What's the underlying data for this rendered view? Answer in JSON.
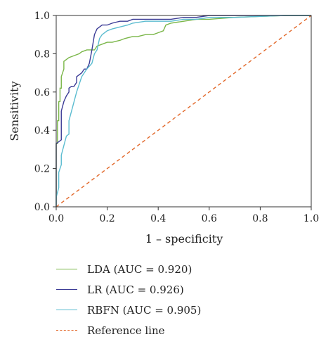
{
  "chart_data": {
    "type": "line",
    "xlabel": "1 – specificity",
    "ylabel": "Sensitivity",
    "xlim": [
      0,
      1
    ],
    "ylim": [
      0,
      1
    ],
    "x_ticks": [
      "0.0",
      "0.2",
      "0.4",
      "0.6",
      "0.8",
      "1.0"
    ],
    "y_ticks": [
      "0.0",
      "0.2",
      "0.4",
      "0.6",
      "0.8",
      "1.0"
    ],
    "grid": false,
    "legend_position": "bottom-left",
    "series": [
      {
        "name": "LDA (AUC = 0.920)",
        "color": "#7ab648",
        "x": [
          0,
          0,
          0.005,
          0.005,
          0.01,
          0.01,
          0.015,
          0.015,
          0.02,
          0.02,
          0.03,
          0.03,
          0.05,
          0.07,
          0.09,
          0.1,
          0.12,
          0.15,
          0.16,
          0.18,
          0.2,
          0.22,
          0.25,
          0.27,
          0.3,
          0.32,
          0.35,
          0.38,
          0.4,
          0.42,
          0.43,
          0.45,
          0.5,
          0.55,
          0.6,
          0.7,
          0.8,
          0.9,
          1.0
        ],
        "y": [
          0,
          0.33,
          0.33,
          0.45,
          0.45,
          0.55,
          0.55,
          0.62,
          0.62,
          0.68,
          0.72,
          0.76,
          0.78,
          0.79,
          0.8,
          0.81,
          0.82,
          0.82,
          0.84,
          0.85,
          0.86,
          0.86,
          0.87,
          0.88,
          0.89,
          0.89,
          0.9,
          0.9,
          0.91,
          0.92,
          0.95,
          0.96,
          0.97,
          0.98,
          0.98,
          0.99,
          0.995,
          1.0,
          1.0
        ]
      },
      {
        "name": "LR (AUC = 0.926)",
        "color": "#3c3c96",
        "x": [
          0,
          0,
          0.02,
          0.02,
          0.03,
          0.04,
          0.05,
          0.05,
          0.06,
          0.07,
          0.08,
          0.08,
          0.1,
          0.11,
          0.12,
          0.13,
          0.14,
          0.15,
          0.16,
          0.17,
          0.18,
          0.2,
          0.22,
          0.25,
          0.28,
          0.3,
          0.35,
          0.4,
          0.45,
          0.5,
          0.55,
          0.6,
          0.7,
          0.8,
          0.9,
          1.0
        ],
        "y": [
          0,
          0.33,
          0.35,
          0.5,
          0.55,
          0.58,
          0.6,
          0.62,
          0.63,
          0.63,
          0.65,
          0.68,
          0.7,
          0.72,
          0.72,
          0.75,
          0.82,
          0.9,
          0.93,
          0.94,
          0.95,
          0.95,
          0.96,
          0.97,
          0.97,
          0.98,
          0.98,
          0.98,
          0.98,
          0.99,
          0.99,
          1.0,
          1.0,
          1.0,
          1.0,
          1.0
        ]
      },
      {
        "name": "RBFN (AUC = 0.905)",
        "color": "#5bbcd0",
        "x": [
          0,
          0,
          0.01,
          0.01,
          0.02,
          0.02,
          0.03,
          0.04,
          0.05,
          0.05,
          0.07,
          0.08,
          0.1,
          0.12,
          0.14,
          0.15,
          0.16,
          0.17,
          0.18,
          0.2,
          0.22,
          0.25,
          0.28,
          0.3,
          0.35,
          0.4,
          0.45,
          0.5,
          0.55,
          0.6,
          0.7,
          0.8,
          0.9,
          1.0
        ],
        "y": [
          0,
          0.05,
          0.1,
          0.18,
          0.22,
          0.27,
          0.32,
          0.37,
          0.38,
          0.45,
          0.55,
          0.6,
          0.68,
          0.72,
          0.75,
          0.8,
          0.82,
          0.88,
          0.9,
          0.92,
          0.93,
          0.94,
          0.95,
          0.96,
          0.97,
          0.97,
          0.97,
          0.98,
          0.98,
          0.99,
          0.99,
          0.995,
          1.0,
          1.0
        ]
      },
      {
        "name": "Reference line",
        "color": "#e2682a",
        "dashed": true,
        "x": [
          0,
          1
        ],
        "y": [
          0,
          1
        ]
      }
    ]
  }
}
